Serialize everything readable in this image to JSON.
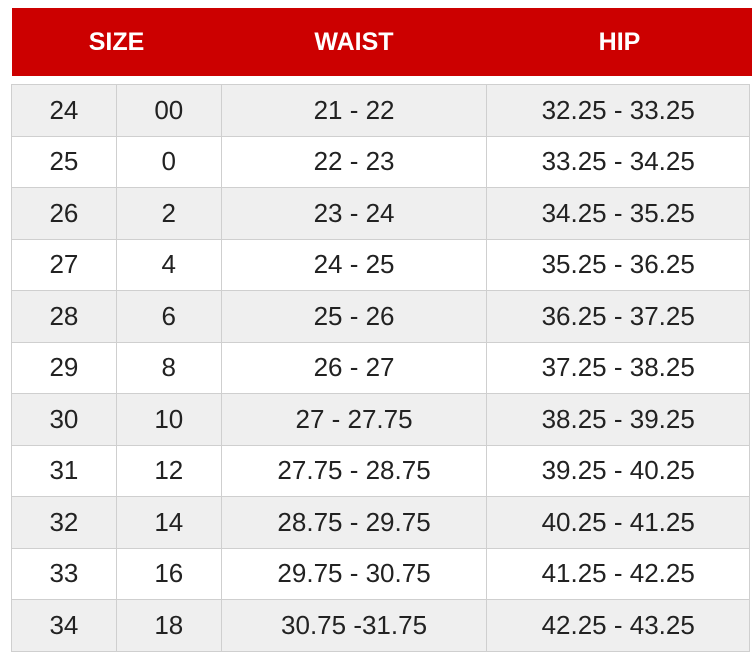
{
  "header": {
    "size": "SIZE",
    "waist": "WAIST",
    "hip": "HIP"
  },
  "colors": {
    "header_bg": "#cc0000",
    "stripe": "#efefef"
  },
  "rows": [
    [
      "24",
      "00",
      "21 - 22",
      "32.25 - 33.25"
    ],
    [
      "25",
      "0",
      "22 - 23",
      "33.25 - 34.25"
    ],
    [
      "26",
      "2",
      "23 - 24",
      "34.25 - 35.25"
    ],
    [
      "27",
      "4",
      "24 - 25",
      "35.25 - 36.25"
    ],
    [
      "28",
      "6",
      "25 - 26",
      "36.25 - 37.25"
    ],
    [
      "29",
      "8",
      "26 - 27",
      "37.25 - 38.25"
    ],
    [
      "30",
      "10",
      "27 - 27.75",
      "38.25 - 39.25"
    ],
    [
      "31",
      "12",
      "27.75 - 28.75",
      "39.25 - 40.25"
    ],
    [
      "32",
      "14",
      "28.75 - 29.75",
      "40.25 - 41.25"
    ],
    [
      "33",
      "16",
      "29.75 - 30.75",
      "41.25 - 42.25"
    ],
    [
      "34",
      "18",
      "30.75 -31.75",
      "42.25 - 43.25"
    ]
  ]
}
